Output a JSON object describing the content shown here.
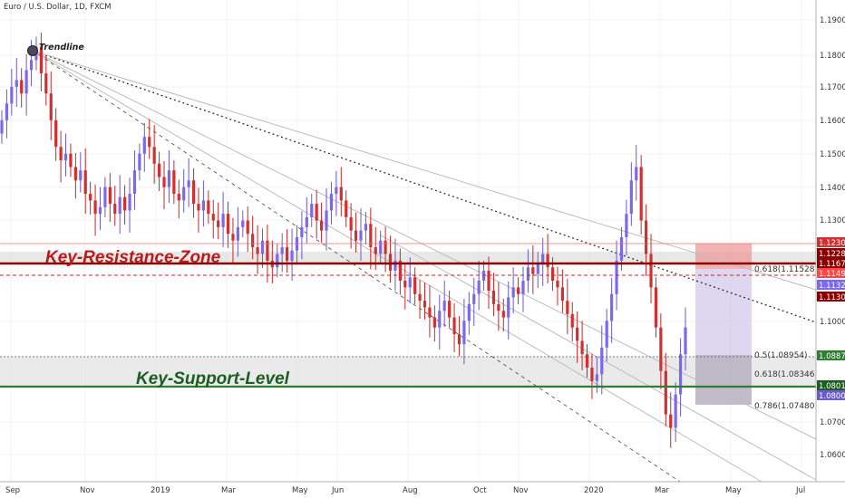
{
  "symbol_title": "Euro / U.S. Dollar, 1D, FXCM",
  "chart_data": {
    "type": "candlestick",
    "title": "Euro / U.S. Dollar, 1D, FXCM",
    "y_range": [
      1.052,
      1.196
    ],
    "y_ticks": [
      "1.19000",
      "1.18000",
      "1.17000",
      "1.16000",
      "1.15000",
      "1.14000",
      "1.13000",
      "1.10000",
      "1.07000",
      "1.06000"
    ],
    "x_ticks": [
      "Sep",
      "Nov",
      "2019",
      "Mar",
      "May",
      "Jun",
      "Aug",
      "Oct",
      "Nov",
      "2020",
      "Mar",
      "May",
      "Jul"
    ],
    "annotations": {
      "trendline_label": "Trendline",
      "resistance_label": "Key-Resistance-Zone",
      "support_label": "Key-Support-Level"
    },
    "levels": {
      "resistance_zone": [
        1.1163,
        1.123
      ],
      "resistance_line": 1.11678,
      "support_zone": [
        1.0801,
        1.0885
      ],
      "support_line": 1.08012
    },
    "fib_labels": [
      "0.618(1.11528)",
      "0.5(1.08954)",
      "0.618(1.08346)",
      "0.786(1.07480)"
    ],
    "price_badges": [
      {
        "label": "1.12300",
        "color": "#d32f2f"
      },
      {
        "label": "1.12281",
        "color": "#8b0000"
      },
      {
        "label": "1.11678",
        "color": "#8b0000"
      },
      {
        "label": "1.11496",
        "color": "#ff4444"
      },
      {
        "label": "1.11320",
        "color": "#7b68ee"
      },
      {
        "label": "1.11308",
        "color": "#8b0000"
      },
      {
        "label": "1.08875",
        "color": "#2e7d32"
      },
      {
        "label": "1.08012",
        "color": "#1b5e20"
      },
      {
        "label": "1.08004",
        "color": "#6a5acd"
      }
    ],
    "series_close": [
      1.16,
      1.165,
      1.17,
      1.172,
      1.168,
      1.175,
      1.178,
      1.182,
      1.174,
      1.168,
      1.16,
      1.152,
      1.148,
      1.15,
      1.146,
      1.142,
      1.145,
      1.138,
      1.136,
      1.132,
      1.134,
      1.14,
      1.135,
      1.132,
      1.137,
      1.133,
      1.138,
      1.145,
      1.15,
      1.155,
      1.152,
      1.147,
      1.143,
      1.14,
      1.145,
      1.138,
      1.136,
      1.14,
      1.142,
      1.135,
      1.133,
      1.136,
      1.132,
      1.13,
      1.128,
      1.132,
      1.126,
      1.124,
      1.128,
      1.13,
      1.126,
      1.122,
      1.12,
      1.124,
      1.118,
      1.116,
      1.12,
      1.122,
      1.118,
      1.121,
      1.125,
      1.128,
      1.131,
      1.135,
      1.13,
      1.127,
      1.133,
      1.138,
      1.14,
      1.136,
      1.131,
      1.127,
      1.124,
      1.127,
      1.129,
      1.122,
      1.12,
      1.124,
      1.12,
      1.115,
      1.118,
      1.112,
      1.11,
      1.113,
      1.108,
      1.106,
      1.104,
      1.101,
      1.098,
      1.103,
      1.106,
      1.101,
      1.096,
      1.093,
      1.1,
      1.105,
      1.108,
      1.112,
      1.115,
      1.109,
      1.105,
      1.103,
      1.101,
      1.107,
      1.11,
      1.108,
      1.112,
      1.116,
      1.114,
      1.117,
      1.12,
      1.116,
      1.112,
      1.11,
      1.106,
      1.102,
      1.098,
      1.094,
      1.09,
      1.086,
      1.082,
      1.084,
      1.092,
      1.1,
      1.108,
      1.118,
      1.125,
      1.132,
      1.142,
      1.146,
      1.13,
      1.12,
      1.11,
      1.098,
      1.085,
      1.072,
      1.068,
      1.078,
      1.09,
      1.098
    ]
  }
}
